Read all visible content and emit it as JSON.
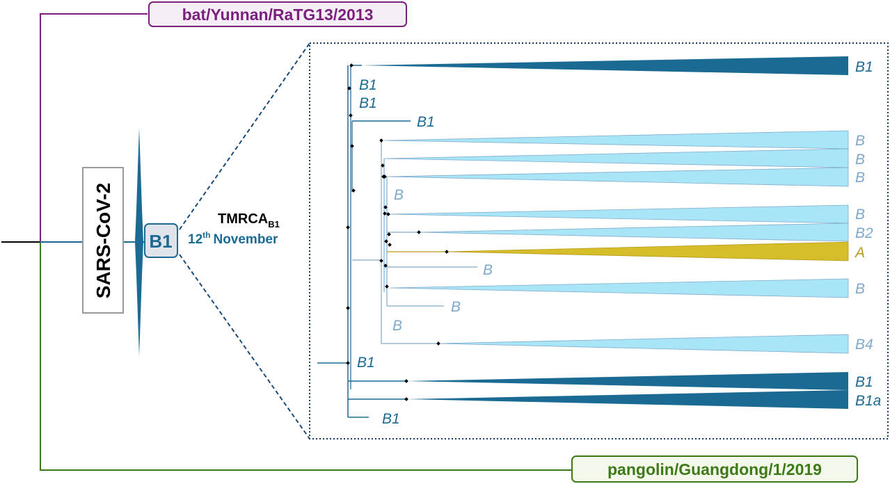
{
  "outgroups": {
    "bat": "bat/Yunnan/RaTG13/2013",
    "pangolin": "pangolin/Guangdong/1/2019"
  },
  "main_label": "SARS-CoV-2",
  "lineage_box": "B1",
  "tmrca": {
    "prefix": "TMRCA",
    "subscript": "B1",
    "date_number": "12",
    "date_suffix": "th",
    "date_month": "November"
  },
  "clades": [
    {
      "label": "B1"
    },
    {
      "label": "B"
    },
    {
      "label": "B"
    },
    {
      "label": "B"
    },
    {
      "label": "B"
    },
    {
      "label": "B2"
    },
    {
      "label": "A"
    },
    {
      "label": "B"
    },
    {
      "label": "B4"
    },
    {
      "label": "B1"
    },
    {
      "label": "B1a"
    }
  ],
  "leaves": [
    {
      "label": "B1"
    },
    {
      "label": "B1"
    },
    {
      "label": "B1"
    },
    {
      "label": "B"
    },
    {
      "label": "B"
    },
    {
      "label": "B"
    },
    {
      "label": "B"
    },
    {
      "label": "B1"
    },
    {
      "label": "B1"
    }
  ],
  "colors": {
    "bat": "#7b1f7e",
    "pangolin": "#3d7a17",
    "lineage_b1": "#1a6a94",
    "lineage_b": "#a8e6f7",
    "lineage_b_text": "#7fa9cc",
    "lineage_a": "#d6bd2a",
    "lineage_a_text": "#b89a16"
  }
}
